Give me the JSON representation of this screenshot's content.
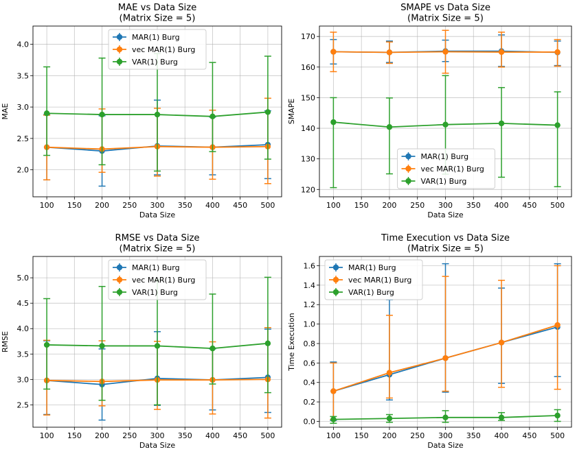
{
  "colors": {
    "mar_burg": "#1f77b4",
    "vec_mar_burg": "#ff7f0e",
    "var_burg": "#2ca02c",
    "grid": "#b0b0b0"
  },
  "chart_data": [
    {
      "type": "line",
      "title": "MAE vs Data Size\n(Matrix Size = 5)",
      "xlabel": "Data Size",
      "ylabel": "MAE",
      "x": [
        100,
        200,
        300,
        400,
        500
      ],
      "xticks": [
        "100",
        "150",
        "200",
        "250",
        "300",
        "350",
        "400",
        "450",
        "500"
      ],
      "xlim": [
        75,
        525
      ],
      "yticks": [
        "2.0",
        "2.5",
        "3.0",
        "3.5",
        "4.0"
      ],
      "ylim": [
        1.57,
        4.29
      ],
      "grid": true,
      "legend": "upper-center",
      "series": [
        {
          "name": "MAR(1) Burg",
          "values": [
            2.36,
            2.3,
            2.38,
            2.36,
            2.4
          ],
          "err_low": [
            1.84,
            1.74,
            1.92,
            1.92,
            1.86
          ],
          "err_high": [
            2.88,
            2.86,
            3.11,
            2.84,
            2.94
          ]
        },
        {
          "name": "vec MAR(1) Burg",
          "values": [
            2.36,
            2.33,
            2.37,
            2.36,
            2.37
          ],
          "err_low": [
            1.84,
            1.96,
            1.9,
            1.85,
            1.78
          ],
          "err_high": [
            2.87,
            2.97,
            2.98,
            2.95,
            3.14
          ]
        },
        {
          "name": "VAR(1) Burg",
          "values": [
            2.9,
            2.88,
            2.88,
            2.85,
            2.92
          ],
          "err_low": [
            2.23,
            2.08,
            1.98,
            2.29,
            2.17
          ],
          "err_high": [
            3.64,
            3.78,
            3.85,
            3.71,
            3.81
          ]
        }
      ]
    },
    {
      "type": "line",
      "title": "SMAPE vs Data Size\n(Matrix Size = 5)",
      "xlabel": "Data Size",
      "ylabel": "SMAPE",
      "x": [
        100,
        200,
        300,
        400,
        500
      ],
      "xticks": [
        "100",
        "150",
        "200",
        "250",
        "300",
        "350",
        "400",
        "450",
        "500"
      ],
      "xlim": [
        75,
        525
      ],
      "yticks": [
        "120",
        "130",
        "140",
        "150",
        "160",
        "170"
      ],
      "ylim": [
        117.6,
        173.4
      ],
      "grid": true,
      "legend": "lower-center",
      "series": [
        {
          "name": "MAR(1) Burg",
          "values": [
            165.0,
            164.8,
            165.2,
            165.2,
            164.8
          ],
          "err_low": [
            161.0,
            161.5,
            161.8,
            160.2,
            160.5
          ],
          "err_high": [
            169.0,
            168.5,
            168.8,
            170.5,
            168.5
          ]
        },
        {
          "name": "vec MAR(1) Burg",
          "values": [
            165.0,
            164.8,
            165.0,
            164.9,
            164.9
          ],
          "err_low": [
            158.5,
            161.2,
            158.0,
            160.0,
            160.3
          ],
          "err_high": [
            171.4,
            168.2,
            172.0,
            171.4,
            169.0
          ]
        },
        {
          "name": "VAR(1) Burg",
          "values": [
            142.0,
            140.4,
            141.2,
            141.6,
            141.0
          ],
          "err_low": [
            120.6,
            125.1,
            125.0,
            124.0,
            120.9
          ],
          "err_high": [
            150.0,
            149.9,
            157.2,
            153.3,
            151.9
          ]
        }
      ]
    },
    {
      "type": "line",
      "title": "RMSE vs Data Size\n(Matrix Size = 5)",
      "xlabel": "Data Size",
      "ylabel": "RMSE",
      "x": [
        100,
        200,
        300,
        400,
        500
      ],
      "xticks": [
        "100",
        "150",
        "200",
        "250",
        "300",
        "350",
        "400",
        "450",
        "500"
      ],
      "xlim": [
        75,
        525
      ],
      "yticks": [
        "2.5",
        "3.0",
        "3.5",
        "4.0",
        "4.5",
        "5.0"
      ],
      "ylim": [
        2.06,
        5.42
      ],
      "grid": true,
      "legend": "upper-center",
      "series": [
        {
          "name": "MAR(1) Burg",
          "values": [
            2.98,
            2.9,
            3.02,
            2.99,
            3.04
          ],
          "err_low": [
            2.31,
            2.2,
            2.49,
            2.4,
            2.35
          ],
          "err_high": [
            3.76,
            3.6,
            3.94,
            3.6,
            3.99
          ]
        },
        {
          "name": "vec MAR(1) Burg",
          "values": [
            2.98,
            2.96,
            2.99,
            2.99,
            3.0
          ],
          "err_low": [
            2.3,
            2.48,
            2.41,
            2.32,
            2.24
          ],
          "err_high": [
            3.77,
            3.76,
            3.75,
            3.74,
            4.02
          ]
        },
        {
          "name": "VAR(1) Burg",
          "values": [
            3.68,
            3.66,
            3.66,
            3.61,
            3.71
          ],
          "err_low": [
            2.81,
            2.59,
            2.5,
            2.91,
            2.74
          ],
          "err_high": [
            4.59,
            4.83,
            4.96,
            4.68,
            5.01
          ]
        }
      ]
    },
    {
      "type": "line",
      "title": "Time Execution vs Data Size\n(Matrix Size = 5)",
      "xlabel": "Data Size",
      "ylabel": "Time Execution",
      "x": [
        100,
        200,
        300,
        400,
        500
      ],
      "xticks": [
        "100",
        "150",
        "200",
        "250",
        "300",
        "350",
        "400",
        "450",
        "500"
      ],
      "xlim": [
        75,
        525
      ],
      "yticks": [
        "0.0",
        "0.2",
        "0.4",
        "0.6",
        "0.8",
        "1.0",
        "1.2",
        "1.4",
        "1.6"
      ],
      "ylim": [
        -0.06,
        1.695
      ],
      "grid": true,
      "legend": "upper-left",
      "series": [
        {
          "name": "MAR(1) Burg",
          "values": [
            0.31,
            0.48,
            0.65,
            0.81,
            0.97
          ],
          "err_low": [
            0.01,
            0.22,
            0.3,
            0.39,
            0.46
          ],
          "err_high": [
            0.61,
            1.25,
            1.62,
            1.37,
            1.62
          ]
        },
        {
          "name": "vec MAR(1) Burg",
          "values": [
            0.31,
            0.5,
            0.65,
            0.81,
            0.99
          ],
          "err_low": [
            0.02,
            0.24,
            0.31,
            0.35,
            0.33
          ],
          "err_high": [
            0.6,
            1.09,
            1.49,
            1.45,
            1.6
          ]
        },
        {
          "name": "VAR(1) Burg",
          "values": [
            0.02,
            0.03,
            0.04,
            0.04,
            0.06
          ],
          "err_low": [
            -0.02,
            -0.01,
            -0.01,
            0.01,
            0.0
          ],
          "err_high": [
            0.05,
            0.07,
            0.11,
            0.09,
            0.12
          ]
        }
      ]
    }
  ]
}
